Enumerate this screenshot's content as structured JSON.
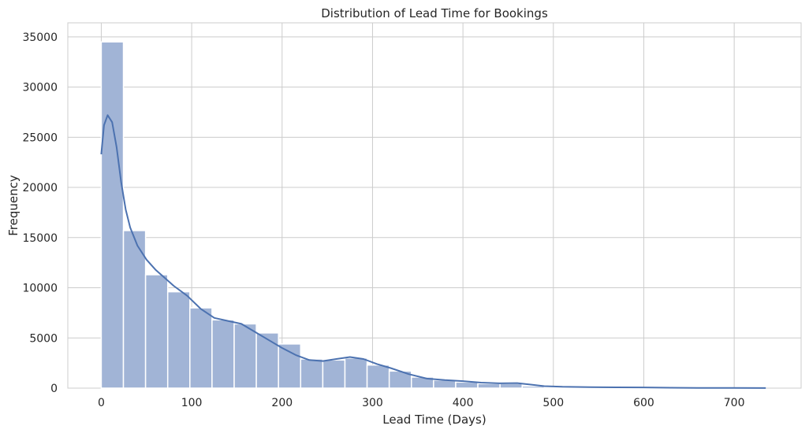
{
  "chart_data": {
    "type": "bar",
    "title": "Distribution of Lead Time for Bookings",
    "xlabel": "Lead Time (Days)",
    "ylabel": "Frequency",
    "xlim": [
      -37,
      774
    ],
    "ylim": [
      0,
      36400
    ],
    "xticks": [
      0,
      100,
      200,
      300,
      400,
      500,
      600,
      700
    ],
    "yticks": [
      0,
      5000,
      10000,
      15000,
      20000,
      25000,
      30000,
      35000
    ],
    "grid": true,
    "bins": {
      "edges": [
        0,
        24.5,
        49,
        73.5,
        98,
        122.5,
        147,
        171.5,
        196,
        220.5,
        245,
        269.5,
        294,
        318.5,
        343,
        367.5,
        392,
        416.5,
        441,
        465.5,
        490,
        514.5,
        539,
        563.5,
        588,
        612.5,
        637,
        661.5,
        686,
        710.5,
        735
      ],
      "values": [
        34500,
        15700,
        11300,
        9600,
        8000,
        6800,
        6400,
        5500,
        4400,
        2900,
        2800,
        3000,
        2300,
        1700,
        1100,
        800,
        600,
        450,
        450,
        200,
        100,
        80,
        80,
        50,
        80,
        60,
        30,
        20,
        20,
        30
      ]
    },
    "kde": {
      "x": [
        0,
        3,
        7,
        12,
        17,
        22,
        27,
        32,
        40,
        50,
        60,
        70,
        80,
        95,
        110,
        125,
        140,
        155,
        170,
        185,
        200,
        215,
        230,
        245,
        260,
        275,
        290,
        305,
        320,
        340,
        360,
        380,
        400,
        420,
        440,
        460,
        475,
        490,
        510,
        540,
        570,
        600,
        630,
        660,
        700,
        735
      ],
      "y": [
        23300,
        26200,
        27200,
        26500,
        24000,
        20500,
        17800,
        16000,
        14200,
        12800,
        11800,
        11000,
        10200,
        9200,
        7900,
        7000,
        6700,
        6400,
        5600,
        4800,
        4000,
        3300,
        2800,
        2700,
        2900,
        3100,
        2900,
        2400,
        2000,
        1400,
        950,
        800,
        700,
        550,
        480,
        500,
        350,
        200,
        130,
        100,
        80,
        70,
        40,
        25,
        15,
        10
      ]
    },
    "bar_color": "#a1b4d6",
    "line_color": "#4c72b0"
  }
}
